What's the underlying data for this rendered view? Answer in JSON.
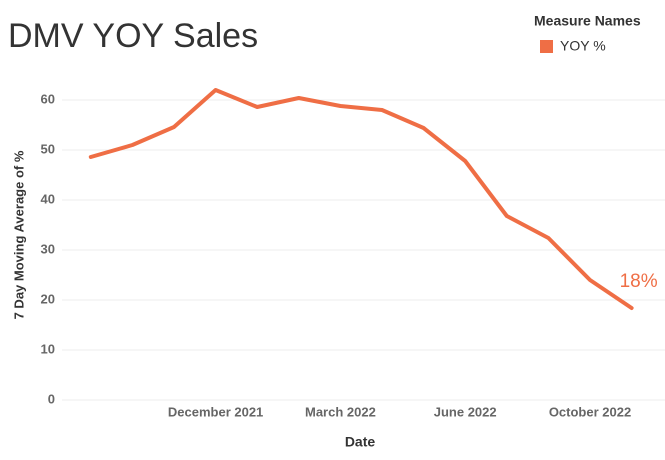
{
  "chart_data": {
    "type": "line",
    "title": "DMV YOY Sales",
    "x_label": "Date",
    "y_label": "7 Day Moving Average of %",
    "legend_title": "Measure Names",
    "categories": [
      null,
      null,
      null,
      "December 2021",
      null,
      null,
      "March 2022",
      null,
      null,
      "June 2022",
      null,
      null,
      "October 2022",
      null
    ],
    "series": [
      {
        "name": "YOY %",
        "color": "#ef6e45",
        "values": [
          48.6,
          51,
          54.6,
          62,
          58.6,
          60.4,
          58.8,
          58,
          54.4,
          47.8,
          36.8,
          32.4,
          24,
          18.4
        ],
        "value_labels": [
          null,
          null,
          null,
          null,
          null,
          null,
          null,
          null,
          null,
          null,
          null,
          null,
          null,
          "18%"
        ]
      }
    ],
    "ylim": [
      -1,
      66
    ],
    "yticks": [
      0,
      10,
      20,
      30,
      40,
      50,
      60
    ],
    "grid": true
  }
}
